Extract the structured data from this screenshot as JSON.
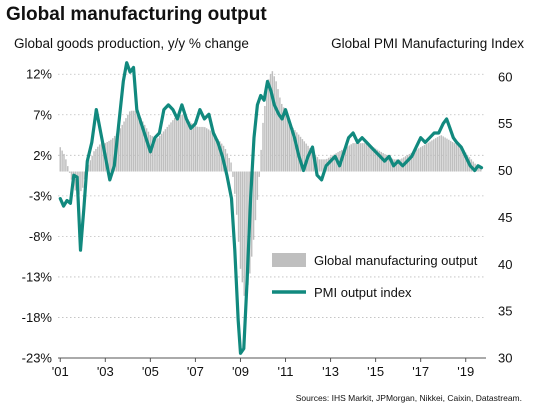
{
  "title": "Global manufacturing output",
  "source": "Sources: IHS Markit, JPMorgan, Nikkei, Caixin, Datastream.",
  "chart_data": {
    "type": "bar+line",
    "left_axis": {
      "label": "Global  goods production, y/y % change",
      "ticks": [
        "12%",
        "7%",
        "2%",
        "-3%",
        "-8%",
        "-13%",
        "-18%",
        "-23%"
      ],
      "tick_values": [
        12,
        7,
        2,
        -3,
        -8,
        -13,
        -18,
        -23
      ],
      "range": [
        -23,
        14
      ]
    },
    "right_axis": {
      "label": "Global PMI Manufacturing Index",
      "ticks": [
        "60",
        "55",
        "50",
        "45",
        "40",
        "35",
        "30"
      ],
      "tick_values": [
        60,
        55,
        50,
        45,
        40,
        35,
        30
      ],
      "range": [
        30,
        62
      ]
    },
    "x_axis": {
      "ticks": [
        "'01",
        "'03",
        "'05",
        "'07",
        "'09",
        "'11",
        "'13",
        "'15",
        "'17",
        "'19"
      ],
      "tick_years": [
        2001,
        2003,
        2005,
        2007,
        2009,
        2011,
        2013,
        2015,
        2017,
        2019
      ],
      "range": [
        2000.9,
        2019.9
      ]
    },
    "legend": {
      "placement": "bottom-right",
      "items": [
        {
          "name": "Global manufacturing output",
          "type": "bar",
          "color": "#bfbfbf"
        },
        {
          "name": "PMI output index",
          "type": "line",
          "color": "#11897e"
        }
      ]
    },
    "series": [
      {
        "name": "Global manufacturing output",
        "axis": "left",
        "type": "bar",
        "color": "#bfbfbf",
        "points": [
          [
            2001.0,
            3.0
          ],
          [
            2001.2,
            2.0
          ],
          [
            2001.4,
            0.0
          ],
          [
            2001.6,
            -2.0
          ],
          [
            2001.8,
            -3.0
          ],
          [
            2002.0,
            -2.0
          ],
          [
            2002.2,
            0.5
          ],
          [
            2002.5,
            2.5
          ],
          [
            2002.8,
            3.5
          ],
          [
            2003.0,
            3.5
          ],
          [
            2003.3,
            4.0
          ],
          [
            2003.6,
            5.0
          ],
          [
            2003.9,
            6.5
          ],
          [
            2004.1,
            7.5
          ],
          [
            2004.4,
            7.5
          ],
          [
            2004.7,
            6.0
          ],
          [
            2005.0,
            4.5
          ],
          [
            2005.3,
            4.0
          ],
          [
            2005.6,
            5.0
          ],
          [
            2005.9,
            6.0
          ],
          [
            2006.2,
            7.0
          ],
          [
            2006.5,
            7.0
          ],
          [
            2006.8,
            6.0
          ],
          [
            2007.1,
            5.5
          ],
          [
            2007.4,
            5.5
          ],
          [
            2007.7,
            5.0
          ],
          [
            2008.0,
            4.0
          ],
          [
            2008.3,
            3.0
          ],
          [
            2008.6,
            1.0
          ],
          [
            2008.8,
            -4.0
          ],
          [
            2009.0,
            -12.0
          ],
          [
            2009.2,
            -16.0
          ],
          [
            2009.4,
            -13.0
          ],
          [
            2009.6,
            -8.0
          ],
          [
            2009.8,
            -2.0
          ],
          [
            2010.0,
            6.0
          ],
          [
            2010.2,
            11.0
          ],
          [
            2010.4,
            12.5
          ],
          [
            2010.6,
            11.0
          ],
          [
            2010.8,
            8.5
          ],
          [
            2011.0,
            7.5
          ],
          [
            2011.3,
            5.5
          ],
          [
            2011.6,
            4.5
          ],
          [
            2011.9,
            3.5
          ],
          [
            2012.2,
            2.5
          ],
          [
            2012.5,
            1.5
          ],
          [
            2012.8,
            1.5
          ],
          [
            2013.1,
            2.0
          ],
          [
            2013.4,
            2.5
          ],
          [
            2013.7,
            3.0
          ],
          [
            2014.0,
            3.5
          ],
          [
            2014.3,
            3.5
          ],
          [
            2014.6,
            3.5
          ],
          [
            2014.9,
            3.0
          ],
          [
            2015.2,
            2.5
          ],
          [
            2015.5,
            2.0
          ],
          [
            2015.8,
            1.5
          ],
          [
            2016.1,
            1.5
          ],
          [
            2016.4,
            2.0
          ],
          [
            2016.7,
            2.5
          ],
          [
            2017.0,
            3.0
          ],
          [
            2017.3,
            3.5
          ],
          [
            2017.6,
            4.0
          ],
          [
            2017.9,
            4.5
          ],
          [
            2018.2,
            4.0
          ],
          [
            2018.5,
            3.5
          ],
          [
            2018.8,
            3.0
          ],
          [
            2019.1,
            2.0
          ],
          [
            2019.4,
            1.0
          ],
          [
            2019.7,
            0.5
          ]
        ]
      },
      {
        "name": "PMI output index",
        "axis": "right",
        "type": "line",
        "color": "#11897e",
        "points": [
          [
            2001.0,
            47.0
          ],
          [
            2001.15,
            46.2
          ],
          [
            2001.3,
            46.8
          ],
          [
            2001.45,
            46.5
          ],
          [
            2001.6,
            49.5
          ],
          [
            2001.75,
            49.3
          ],
          [
            2001.9,
            41.5
          ],
          [
            2002.05,
            46.0
          ],
          [
            2002.2,
            51.0
          ],
          [
            2002.4,
            53.0
          ],
          [
            2002.6,
            56.5
          ],
          [
            2002.8,
            54.0
          ],
          [
            2003.0,
            51.5
          ],
          [
            2003.2,
            49.0
          ],
          [
            2003.4,
            50.5
          ],
          [
            2003.6,
            55.0
          ],
          [
            2003.8,
            59.5
          ],
          [
            2003.95,
            61.5
          ],
          [
            2004.1,
            60.5
          ],
          [
            2004.25,
            61.0
          ],
          [
            2004.4,
            56.5
          ],
          [
            2004.6,
            55.0
          ],
          [
            2004.8,
            53.5
          ],
          [
            2005.0,
            52.0
          ],
          [
            2005.2,
            53.5
          ],
          [
            2005.4,
            54.0
          ],
          [
            2005.6,
            56.5
          ],
          [
            2005.8,
            57.0
          ],
          [
            2006.0,
            56.5
          ],
          [
            2006.2,
            55.5
          ],
          [
            2006.4,
            57.0
          ],
          [
            2006.6,
            55.5
          ],
          [
            2006.8,
            54.5
          ],
          [
            2007.0,
            55.0
          ],
          [
            2007.2,
            56.5
          ],
          [
            2007.4,
            55.5
          ],
          [
            2007.6,
            56.0
          ],
          [
            2007.8,
            54.0
          ],
          [
            2008.0,
            53.0
          ],
          [
            2008.2,
            51.5
          ],
          [
            2008.4,
            49.5
          ],
          [
            2008.6,
            47.0
          ],
          [
            2008.75,
            41.5
          ],
          [
            2008.9,
            34.0
          ],
          [
            2009.0,
            30.5
          ],
          [
            2009.15,
            31.0
          ],
          [
            2009.3,
            38.5
          ],
          [
            2009.45,
            47.0
          ],
          [
            2009.6,
            53.5
          ],
          [
            2009.75,
            57.0
          ],
          [
            2009.9,
            58.0
          ],
          [
            2010.05,
            57.5
          ],
          [
            2010.2,
            59.5
          ],
          [
            2010.35,
            58.5
          ],
          [
            2010.5,
            57.0
          ],
          [
            2010.7,
            56.0
          ],
          [
            2010.85,
            55.5
          ],
          [
            2011.0,
            56.5
          ],
          [
            2011.2,
            55.0
          ],
          [
            2011.4,
            53.5
          ],
          [
            2011.6,
            51.5
          ],
          [
            2011.8,
            50.0
          ],
          [
            2012.0,
            51.5
          ],
          [
            2012.2,
            52.5
          ],
          [
            2012.4,
            49.5
          ],
          [
            2012.6,
            49.0
          ],
          [
            2012.8,
            50.5
          ],
          [
            2013.0,
            51.0
          ],
          [
            2013.2,
            51.5
          ],
          [
            2013.4,
            50.5
          ],
          [
            2013.6,
            52.0
          ],
          [
            2013.8,
            53.5
          ],
          [
            2014.0,
            54.0
          ],
          [
            2014.2,
            53.0
          ],
          [
            2014.4,
            53.5
          ],
          [
            2014.6,
            53.0
          ],
          [
            2014.8,
            52.5
          ],
          [
            2015.0,
            52.0
          ],
          [
            2015.2,
            51.5
          ],
          [
            2015.4,
            51.0
          ],
          [
            2015.6,
            51.5
          ],
          [
            2015.8,
            50.5
          ],
          [
            2016.0,
            51.0
          ],
          [
            2016.2,
            50.5
          ],
          [
            2016.4,
            51.0
          ],
          [
            2016.6,
            51.5
          ],
          [
            2016.8,
            52.5
          ],
          [
            2017.0,
            53.5
          ],
          [
            2017.2,
            53.0
          ],
          [
            2017.4,
            53.5
          ],
          [
            2017.6,
            54.0
          ],
          [
            2017.8,
            54.0
          ],
          [
            2018.0,
            55.0
          ],
          [
            2018.15,
            55.5
          ],
          [
            2018.3,
            54.5
          ],
          [
            2018.45,
            53.5
          ],
          [
            2018.6,
            53.0
          ],
          [
            2018.8,
            52.5
          ],
          [
            2019.0,
            51.5
          ],
          [
            2019.2,
            50.5
          ],
          [
            2019.4,
            50.0
          ],
          [
            2019.55,
            50.5
          ],
          [
            2019.7,
            50.3
          ]
        ]
      }
    ]
  }
}
